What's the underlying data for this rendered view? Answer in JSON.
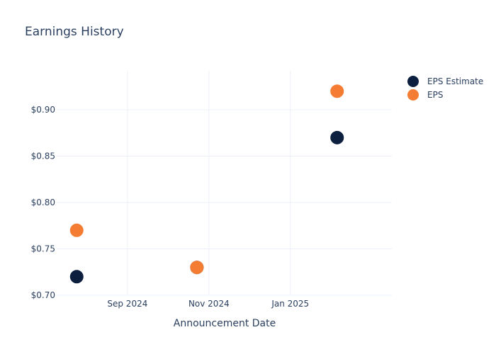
{
  "chart_data": {
    "type": "scatter",
    "title": "Earnings History",
    "xlabel": "Announcement Date",
    "ylabel": "",
    "x_tick_labels": [
      {
        "label": "Sep 2024",
        "date": "2024-09-01"
      },
      {
        "label": "Nov 2024",
        "date": "2024-11-01"
      },
      {
        "label": "Jan 2025",
        "date": "2025-01-01"
      }
    ],
    "y_ticks": [
      0.7,
      0.75,
      0.8,
      0.85,
      0.9
    ],
    "y_tick_labels": [
      "$0.70",
      "$0.75",
      "$0.80",
      "$0.85",
      "$0.90"
    ],
    "xlim": [
      "2024-07-10",
      "2025-03-18"
    ],
    "ylim": [
      0.7,
      0.942
    ],
    "grid": true,
    "legend_position": "top-right",
    "series": [
      {
        "name": "EPS Estimate",
        "color": "#0d1f3f",
        "points": [
          {
            "x": "2024-07-25",
            "y": 0.72
          },
          {
            "x": "2024-10-23",
            "y": 0.73
          },
          {
            "x": "2025-02-05",
            "y": 0.87
          }
        ]
      },
      {
        "name": "EPS",
        "color": "#f47c33",
        "points": [
          {
            "x": "2024-07-25",
            "y": 0.77
          },
          {
            "x": "2024-10-23",
            "y": 0.73
          },
          {
            "x": "2025-02-05",
            "y": 0.92
          }
        ]
      }
    ]
  }
}
